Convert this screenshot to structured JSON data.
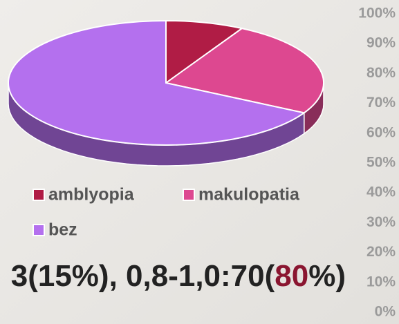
{
  "chart_data": {
    "type": "pie",
    "categories": [
      "amblyopia",
      "makulopatia",
      "bez"
    ],
    "values": [
      8,
      25,
      67
    ],
    "colors": [
      "#b01c45",
      "#dd4890",
      "#b470ee"
    ],
    "ylim": [
      0,
      100
    ],
    "yticks": [
      {
        "value": 0,
        "label": "0%"
      },
      {
        "value": 10,
        "label": "10%"
      },
      {
        "value": 20,
        "label": "20%"
      },
      {
        "value": 30,
        "label": "30%"
      },
      {
        "value": 40,
        "label": "40%"
      },
      {
        "value": 50,
        "label": "50%"
      },
      {
        "value": 60,
        "label": "60%"
      },
      {
        "value": 70,
        "label": "70%"
      },
      {
        "value": 80,
        "label": "80%"
      },
      {
        "value": 90,
        "label": "90%"
      },
      {
        "value": 100,
        "label": "100%"
      }
    ]
  },
  "caption": [
    "3(15%), 0,8-1,0:70(",
    "80",
    "%)"
  ]
}
